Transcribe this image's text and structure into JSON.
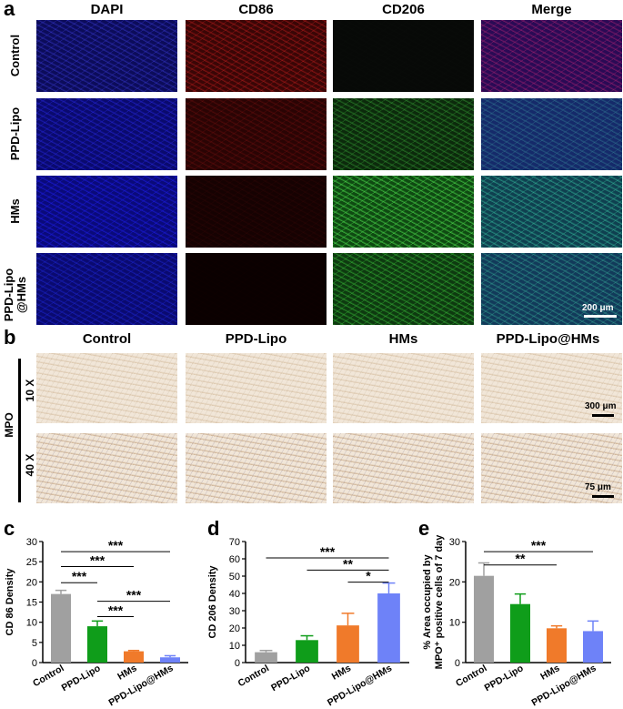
{
  "panels": {
    "a": "a",
    "b": "b",
    "c": "c",
    "d": "d",
    "e": "e"
  },
  "panel_a": {
    "columns": [
      "DAPI",
      "CD86",
      "CD206",
      "Merge"
    ],
    "rows": [
      "Control",
      "PPD-Lipo",
      "HMs",
      "PPD-Lipo\n@HMs"
    ],
    "scale_bar": "200 μm"
  },
  "panel_b": {
    "columns": [
      "Control",
      "PPD-Lipo",
      "HMs",
      "PPD-Lipo@HMs"
    ],
    "stain_label": "MPO",
    "rows": [
      "10 X",
      "40 X"
    ],
    "scale_bars": [
      "300 μm",
      "75 μm"
    ]
  },
  "chart_data": [
    {
      "type": "bar",
      "ylabel": "CD 86 Density",
      "categories": [
        "Control",
        "PPD-Lipo",
        "HMs",
        "PPD-Lipo@HMs"
      ],
      "values": [
        17.0,
        9.0,
        2.8,
        1.3
      ],
      "errors": [
        0.9,
        1.3,
        0.2,
        0.4
      ],
      "colors": [
        "#a0a0a0",
        "#0f9d1a",
        "#f07a2a",
        "#6e82f8"
      ],
      "ylim": [
        0,
        30
      ],
      "yticks": [
        0,
        5,
        10,
        15,
        20,
        25,
        30
      ],
      "significance": [
        {
          "from": 0,
          "to": 3,
          "label": "***",
          "y": 27.5
        },
        {
          "from": 0,
          "to": 2,
          "label": "***",
          "y": 23.8
        },
        {
          "from": 0,
          "to": 1,
          "label": "***",
          "y": 19.8
        },
        {
          "from": 1,
          "to": 3,
          "label": "***",
          "y": 15.2
        },
        {
          "from": 1,
          "to": 2,
          "label": "***",
          "y": 11.4
        }
      ]
    },
    {
      "type": "bar",
      "ylabel": "CD 206 Density",
      "categories": [
        "Control",
        "PPD-Lipo",
        "HMs",
        "PPD-Lipo@HMs"
      ],
      "values": [
        6.0,
        13.0,
        21.5,
        40.0
      ],
      "errors": [
        1.0,
        2.5,
        7.0,
        6.0
      ],
      "colors": [
        "#a0a0a0",
        "#0f9d1a",
        "#f07a2a",
        "#6e82f8"
      ],
      "ylim": [
        0,
        70
      ],
      "yticks": [
        0,
        10,
        20,
        30,
        40,
        50,
        60,
        70
      ],
      "significance": [
        {
          "from": 0,
          "to": 3,
          "label": "***",
          "y": 60.5
        },
        {
          "from": 1,
          "to": 3,
          "label": "**",
          "y": 53.5
        },
        {
          "from": 2,
          "to": 3,
          "label": "*",
          "y": 46.5
        }
      ]
    },
    {
      "type": "bar",
      "ylabel": "% Area occupied by\nMPO⁺ positive cells of 7 day",
      "categories": [
        "Control",
        "PPD-Lipo",
        "HMs",
        "PPD-Lipo@HMs"
      ],
      "values": [
        21.5,
        14.5,
        8.5,
        7.8
      ],
      "errors": [
        3.2,
        2.5,
        0.6,
        2.5
      ],
      "colors": [
        "#a0a0a0",
        "#0f9d1a",
        "#f07a2a",
        "#6e82f8"
      ],
      "ylim": [
        0,
        30
      ],
      "yticks": [
        0,
        10,
        20,
        30
      ],
      "significance": [
        {
          "from": 0,
          "to": 3,
          "label": "***",
          "y": 27.5
        },
        {
          "from": 0,
          "to": 2,
          "label": "**",
          "y": 24.2
        }
      ]
    }
  ]
}
